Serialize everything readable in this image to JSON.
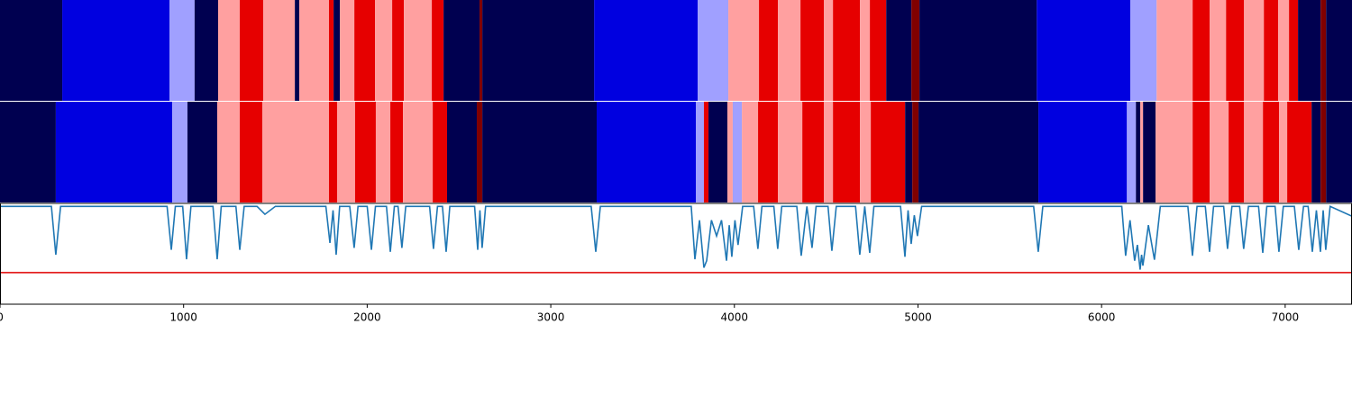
{
  "chart_data": {
    "type": "segmentation",
    "xlim": [
      0,
      7364
    ],
    "xticks": [
      0,
      1000,
      2000,
      3000,
      4000,
      5000,
      6000,
      7000
    ],
    "colors": [
      "#000050",
      "#0000e0",
      "#a0a0ff",
      "#ffa0a0",
      "#e60000",
      "#800000"
    ],
    "rows": [
      {
        "boundaries": [
          0,
          339,
          923,
          1060,
          1188,
          1306,
          1434,
          1606,
          1630,
          1792,
          1817,
          1851,
          1930,
          2043,
          2136,
          2200,
          2352,
          2416,
          2612,
          2627,
          3236,
          3800,
          3967,
          4134,
          4237,
          4360,
          4488,
          4537,
          4684,
          4738,
          4827,
          4964,
          5008,
          5647,
          6157,
          6300,
          6496,
          6589,
          6678,
          6776,
          6884,
          6962,
          7021,
          7070,
          7193,
          7223,
          7364
        ],
        "labels": [
          0,
          1,
          2,
          0,
          3,
          4,
          3,
          0,
          3,
          4,
          0,
          3,
          4,
          3,
          4,
          3,
          4,
          0,
          5,
          0,
          1,
          2,
          3,
          4,
          3,
          4,
          3,
          4,
          3,
          4,
          0,
          5,
          0,
          1,
          2,
          3,
          4,
          3,
          4,
          3,
          4,
          3,
          4,
          0,
          5,
          0
        ]
      },
      {
        "boundaries": [
          0,
          304,
          938,
          1021,
          1183,
          1306,
          1429,
          1792,
          1836,
          1934,
          2047,
          2126,
          2195,
          2357,
          2435,
          2597,
          2627,
          3250,
          3790,
          3834,
          3859,
          3962,
          3991,
          4041,
          4129,
          4237,
          4370,
          4488,
          4537,
          4684,
          4743,
          4930,
          4969,
          5003,
          5656,
          6138,
          6187,
          6211,
          6226,
          6294,
          6496,
          6589,
          6692,
          6776,
          6879,
          6967,
          7011,
          7144,
          7193,
          7223,
          7364
        ],
        "labels": [
          0,
          1,
          2,
          0,
          3,
          4,
          3,
          4,
          3,
          4,
          3,
          4,
          3,
          4,
          0,
          5,
          0,
          1,
          2,
          4,
          0,
          3,
          2,
          3,
          4,
          3,
          4,
          3,
          4,
          3,
          4,
          0,
          5,
          0,
          1,
          2,
          0,
          3,
          0,
          3,
          4,
          3,
          4,
          3,
          4,
          3,
          4,
          0,
          5,
          0
        ]
      }
    ],
    "line": {
      "color": "#1f77b4",
      "ylim": [
        0,
        1.02
      ],
      "x": [
        0,
        280,
        304,
        330,
        910,
        933,
        955,
        995,
        1016,
        1040,
        1160,
        1183,
        1205,
        1285,
        1306,
        1330,
        1400,
        1443,
        1500,
        1775,
        1797,
        1814,
        1831,
        1850,
        1905,
        1929,
        1950,
        2000,
        2023,
        2045,
        2105,
        2126,
        2148,
        2168,
        2189,
        2210,
        2340,
        2361,
        2383,
        2410,
        2430,
        2450,
        2585,
        2602,
        2614,
        2626,
        2645,
        3220,
        3245,
        3270,
        3765,
        3785,
        3810,
        3834,
        3849,
        3875,
        3903,
        3930,
        3957,
        3972,
        3986,
        4003,
        4020,
        4045,
        4105,
        4128,
        4150,
        4215,
        4236,
        4258,
        4340,
        4364,
        4395,
        4423,
        4445,
        4510,
        4531,
        4555,
        4660,
        4683,
        4710,
        4737,
        4760,
        4905,
        4929,
        4946,
        4963,
        4980,
        4997,
        5020,
        5630,
        5655,
        5680,
        6110,
        6131,
        6155,
        6180,
        6195,
        6210,
        6218,
        6225,
        6255,
        6288,
        6320,
        6470,
        6495,
        6520,
        6565,
        6588,
        6610,
        6665,
        6686,
        6710,
        6752,
        6774,
        6800,
        6855,
        6878,
        6900,
        6945,
        6966,
        6990,
        7050,
        7074,
        7100,
        7125,
        7148,
        7170,
        7192,
        7207,
        7221,
        7245,
        7364
      ],
      "values": [
        0.99,
        0.99,
        0.5,
        0.99,
        0.99,
        0.55,
        0.99,
        0.99,
        0.455,
        0.99,
        0.99,
        0.455,
        0.99,
        0.99,
        0.55,
        0.99,
        0.99,
        0.91,
        0.99,
        0.99,
        0.62,
        0.95,
        0.5,
        0.99,
        0.99,
        0.57,
        0.99,
        0.99,
        0.55,
        0.99,
        0.99,
        0.53,
        0.99,
        0.99,
        0.57,
        0.99,
        0.99,
        0.56,
        0.99,
        0.99,
        0.53,
        0.99,
        0.99,
        0.55,
        0.95,
        0.57,
        0.99,
        0.99,
        0.53,
        0.99,
        0.99,
        0.455,
        0.85,
        0.37,
        0.44,
        0.85,
        0.69,
        0.85,
        0.44,
        0.8,
        0.48,
        0.85,
        0.6,
        0.99,
        0.99,
        0.56,
        0.99,
        0.99,
        0.56,
        0.99,
        0.99,
        0.49,
        0.99,
        0.57,
        0.99,
        0.99,
        0.54,
        0.99,
        0.99,
        0.5,
        0.99,
        0.52,
        0.99,
        0.99,
        0.48,
        0.95,
        0.61,
        0.9,
        0.69,
        0.99,
        0.99,
        0.53,
        0.99,
        0.99,
        0.49,
        0.85,
        0.44,
        0.6,
        0.35,
        0.5,
        0.39,
        0.8,
        0.45,
        0.99,
        0.99,
        0.49,
        0.99,
        0.99,
        0.53,
        0.99,
        0.99,
        0.56,
        0.99,
        0.99,
        0.56,
        0.99,
        0.99,
        0.52,
        0.99,
        0.99,
        0.53,
        0.99,
        0.99,
        0.55,
        0.99,
        0.99,
        0.53,
        0.95,
        0.53,
        0.95,
        0.55,
        0.99,
        0.89
      ]
    },
    "threshold": {
      "value": 0.32,
      "color": "#e00000"
    }
  }
}
